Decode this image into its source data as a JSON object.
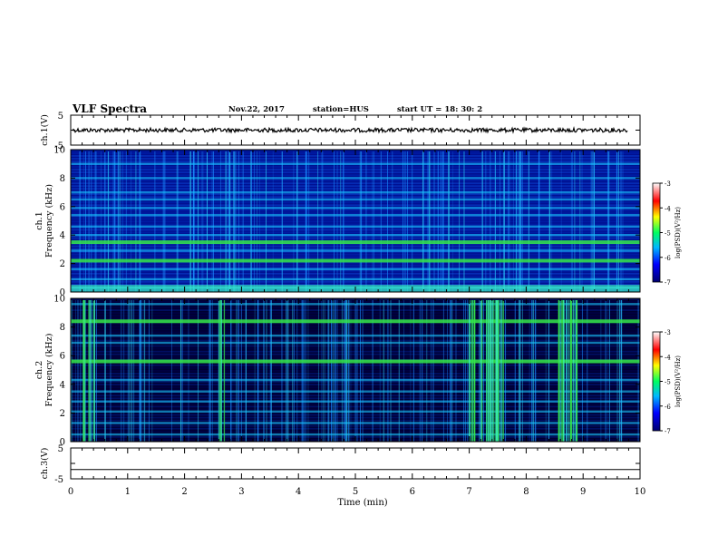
{
  "header": {
    "title": "VLF Spectra",
    "date": "Nov.22, 2017",
    "station": "station=HUS",
    "start": "start  UT =   18: 30: 2"
  },
  "chart_data": [
    {
      "type": "line",
      "name": "ch1-waveform",
      "ylabel": "ch.1(V)",
      "yticks": [
        "5",
        "-5"
      ],
      "ylim": [
        -5,
        5
      ],
      "xlim": [
        0,
        10
      ],
      "description_values": {
        "level": 0
      }
    },
    {
      "type": "heatmap",
      "name": "ch1-spectrogram",
      "ylabel": "ch.1\nFrequency (kHz)",
      "ylabel_lines": [
        "ch.1",
        "Frequency (kHz)"
      ],
      "yticks": [
        "0",
        "2",
        "4",
        "6",
        "8",
        "10"
      ],
      "ylim": [
        0,
        10
      ],
      "xlim": [
        0,
        10
      ],
      "colorbar": {
        "label": "log(PSD)(V²/Hz)",
        "ticks": [
          "-3",
          "-4",
          "-5",
          "-6",
          "-7"
        ],
        "range": [
          -7,
          -3
        ]
      },
      "bands_khz": [
        0.3,
        0.9,
        1.6,
        2.2,
        2.9,
        3.5,
        4.0,
        4.6,
        5.4,
        5.9,
        6.5,
        7.0,
        8.0,
        9.0
      ]
    },
    {
      "type": "heatmap",
      "name": "ch2-spectrogram",
      "ylabel": "ch.2\nFrequency (kHz)",
      "ylabel_lines": [
        "ch.2",
        "Frequency (kHz)"
      ],
      "yticks": [
        "0",
        "2",
        "4",
        "6",
        "8",
        "10"
      ],
      "ylim": [
        0,
        10
      ],
      "xlim": [
        0,
        10
      ],
      "colorbar": {
        "label": "log(PSD)(V²/Hz)",
        "ticks": [
          "-3",
          "-4",
          "-5",
          "-6",
          "-7"
        ],
        "range": [
          -7,
          -3
        ]
      },
      "bands_khz": [
        0.5,
        1.3,
        2.1,
        2.8,
        3.5,
        4.3,
        5.6,
        6.9,
        7.4,
        8.4,
        9.6
      ],
      "bursts_min": [
        [
          0.2,
          0.45
        ],
        [
          2.6,
          2.7
        ],
        [
          7.0,
          7.6
        ],
        [
          8.55,
          8.9
        ]
      ]
    },
    {
      "type": "line",
      "name": "ch3-waveform",
      "ylabel": "ch.3(V)",
      "yticks": [
        "5",
        "-5"
      ],
      "ylim": [
        -5,
        5
      ],
      "xlim": [
        0,
        10
      ],
      "description_values": {
        "level": -2
      }
    }
  ],
  "xaxis": {
    "label": "Time (min)",
    "ticks": [
      "0",
      "1",
      "2",
      "3",
      "4",
      "5",
      "6",
      "7",
      "8",
      "9",
      "10"
    ]
  },
  "colors": {
    "background": "#00007a",
    "band": "#19c8ff",
    "bright": "#38f0c0",
    "green": "#35e84a"
  }
}
